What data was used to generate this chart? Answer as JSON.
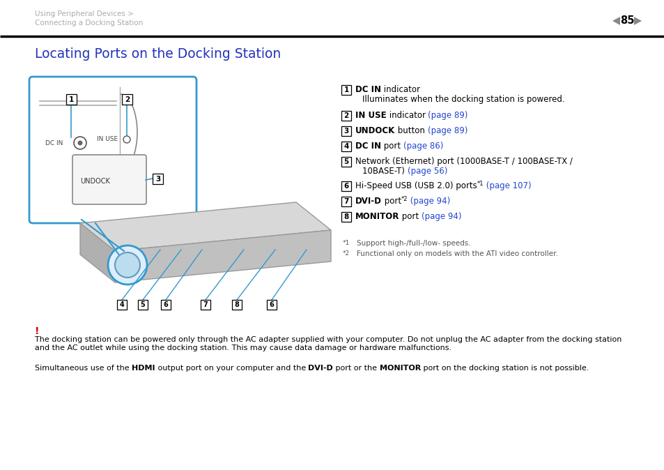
{
  "bg_color": "#ffffff",
  "header_text1": "Using Peripheral Devices >",
  "header_text2": "Connecting a Docking Station",
  "page_num": "85",
  "title": "Locating Ports on the Docking Station",
  "title_color": "#2233bb",
  "header_color": "#aaaaaa",
  "blue": "#2244cc",
  "red": "#cc0000",
  "dock_blue": "#3399cc",
  "warning_text_line1": "The docking station can be powered only through the AC adapter supplied with your computer. Do not unplug the AC adapter from the docking station",
  "warning_text_line2": "and the AC outlet while using the docking station. This may cause data damage or hardware malfunctions.",
  "note_pre": "Simultaneous use of the ",
  "note_bold1": "HDMI",
  "note_mid1": " output port on your computer and the ",
  "note_bold2": "DVI-D",
  "note_mid2": " port or the ",
  "note_bold3": "MONITOR",
  "note_end": " port on the docking station is not possible.",
  "fn1_sup": "*1",
  "fn1_text": "Support high-/full-/low- speeds.",
  "fn2_sup": "*2",
  "fn2_text": "Functional only on models with the ATI video controller."
}
